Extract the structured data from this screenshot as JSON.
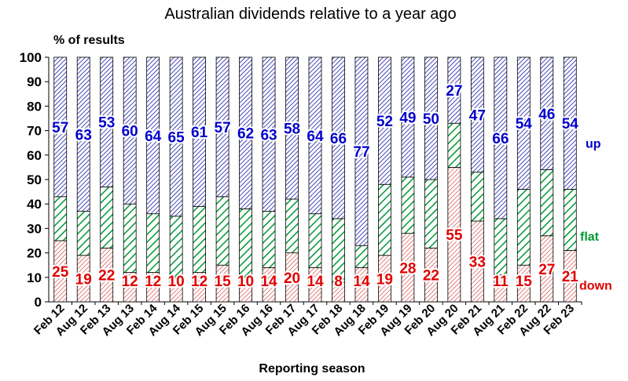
{
  "chart_data": {
    "type": "bar",
    "stacked": true,
    "title": "Australian dividends relative to a year ago",
    "ylabel": "% of results",
    "xlabel": "Reporting season",
    "ylim": [
      0,
      100
    ],
    "yticks": [
      0,
      10,
      20,
      30,
      40,
      50,
      60,
      70,
      80,
      90,
      100
    ],
    "grid": false,
    "categories": [
      "Feb 12",
      "Aug 12",
      "Feb 13",
      "Aug 13",
      "Feb 14",
      "Aug 14",
      "Feb 15",
      "Aug 15",
      "Feb 16",
      "Aug 16",
      "Feb 17",
      "Aug 17",
      "Feb 18",
      "Aug 18",
      "Feb 19",
      "Aug 19",
      "Feb 20",
      "Aug 20",
      "Feb 21",
      "Aug 21",
      "Feb 22",
      "Aug 22",
      "Feb 23"
    ],
    "series": [
      {
        "name": "down",
        "color": "#d00000",
        "values": [
          25,
          19,
          22,
          12,
          12,
          10,
          12,
          15,
          10,
          14,
          20,
          14,
          8,
          14,
          19,
          28,
          22,
          55,
          33,
          11,
          15,
          27,
          21
        ]
      },
      {
        "name": "flat",
        "color": "#009933",
        "values": [
          18,
          18,
          25,
          28,
          24,
          25,
          27,
          28,
          28,
          23,
          22,
          22,
          26,
          9,
          29,
          23,
          28,
          18,
          20,
          23,
          31,
          27,
          25
        ]
      },
      {
        "name": "up",
        "color": "#0000cc",
        "values": [
          57,
          63,
          53,
          60,
          64,
          65,
          61,
          57,
          62,
          63,
          58,
          64,
          66,
          77,
          52,
          49,
          50,
          27,
          47,
          66,
          54,
          46,
          54
        ]
      }
    ],
    "series_labels": {
      "up": "up",
      "flat": "flat",
      "down": "down"
    }
  }
}
